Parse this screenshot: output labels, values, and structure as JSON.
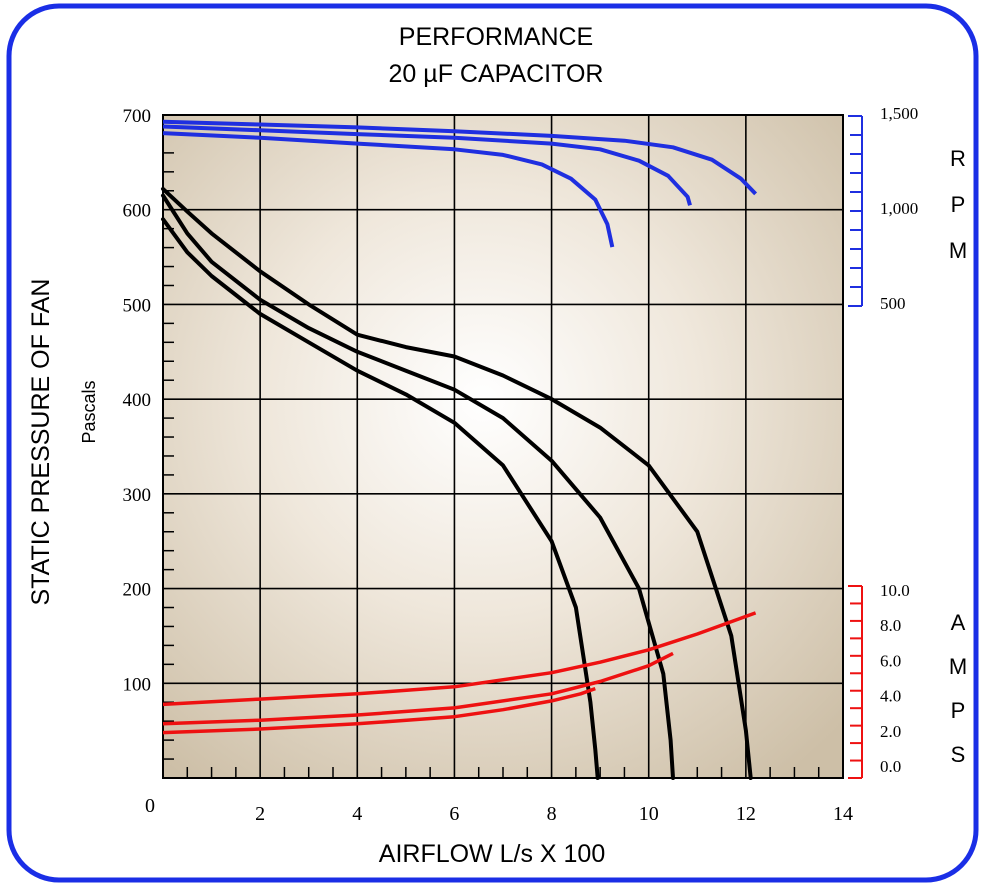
{
  "chart_data": {
    "type": "line",
    "title": "PERFORMANCE",
    "subtitle": "20 µF CAPACITOR",
    "xlabel": "AIRFLOW L/s X 100",
    "ylabel": "STATIC PRESSURE OF FAN",
    "ylabel_units": "Pascals",
    "xlim": [
      0,
      14
    ],
    "ylim": [
      0,
      700
    ],
    "x_ticks": [
      "0",
      "2",
      "4",
      "6",
      "8",
      "10",
      "12",
      "14"
    ],
    "y_ticks": [
      "100",
      "200",
      "300",
      "400",
      "500",
      "600",
      "700"
    ],
    "grid": true,
    "rpm_axis": {
      "label_letters": [
        "R",
        "P",
        "M"
      ],
      "ticks": [
        "1,500",
        "1,000",
        "500"
      ],
      "color": "#1f2fe0"
    },
    "amps_axis": {
      "label_letters": [
        "A",
        "M",
        "P",
        "S"
      ],
      "ticks": [
        "10.0",
        "8.0",
        "6.0",
        "4.0",
        "2.0",
        "0.0"
      ],
      "color": "#ee1111"
    },
    "pressure_curves": {
      "color": "#000000",
      "series": [
        {
          "x": [
            0.0,
            0.5,
            1.0,
            2.0,
            3.0,
            4.0,
            5.0,
            6.0,
            7.0,
            8.0,
            8.5,
            8.8,
            8.9,
            8.95
          ],
          "y": [
            590,
            555,
            530,
            490,
            460,
            430,
            405,
            375,
            330,
            250,
            180,
            80,
            30,
            0
          ]
        },
        {
          "x": [
            0.0,
            0.5,
            1.0,
            2.0,
            3.0,
            4.0,
            5.0,
            6.0,
            7.0,
            8.0,
            9.0,
            9.8,
            10.3,
            10.45,
            10.5
          ],
          "y": [
            615,
            575,
            545,
            505,
            475,
            450,
            430,
            410,
            380,
            335,
            275,
            200,
            110,
            40,
            0
          ]
        },
        {
          "x": [
            0.0,
            0.5,
            1.0,
            2.0,
            3.0,
            4.0,
            5.0,
            6.0,
            7.0,
            8.0,
            9.0,
            10.0,
            11.0,
            11.7,
            12.0,
            12.1
          ],
          "y": [
            622,
            598,
            575,
            535,
            500,
            468,
            455,
            445,
            425,
            400,
            370,
            330,
            260,
            150,
            50,
            0
          ]
        }
      ]
    },
    "rpm_curves": {
      "series": [
        {
          "x": [
            0.0,
            2.0,
            4.0,
            6.0,
            7.0,
            7.8,
            8.4,
            8.9,
            9.15,
            9.25
          ],
          "rpm": [
            1410,
            1385,
            1355,
            1325,
            1295,
            1245,
            1170,
            1060,
            930,
            810
          ]
        },
        {
          "x": [
            0.0,
            2.0,
            4.0,
            6.0,
            8.0,
            9.0,
            9.8,
            10.4,
            10.8,
            10.85
          ],
          "rpm": [
            1445,
            1425,
            1405,
            1385,
            1355,
            1325,
            1265,
            1185,
            1075,
            1030
          ]
        },
        {
          "x": [
            0.0,
            2.0,
            4.0,
            6.0,
            8.0,
            9.5,
            10.5,
            11.3,
            11.9,
            12.2
          ],
          "rpm": [
            1470,
            1455,
            1440,
            1420,
            1395,
            1370,
            1335,
            1270,
            1170,
            1090
          ]
        }
      ]
    },
    "amps_curves": {
      "series": [
        {
          "x": [
            0.0,
            2.0,
            4.0,
            6.0,
            7.0,
            8.0,
            8.6,
            8.9
          ],
          "amps": [
            1.9,
            2.1,
            2.4,
            2.8,
            3.2,
            3.7,
            4.1,
            4.4
          ]
        },
        {
          "x": [
            0.0,
            2.0,
            4.0,
            6.0,
            8.0,
            9.0,
            10.0,
            10.5
          ],
          "amps": [
            2.4,
            2.6,
            2.9,
            3.3,
            4.1,
            4.8,
            5.7,
            6.4
          ]
        },
        {
          "x": [
            0.0,
            2.0,
            4.0,
            6.0,
            8.0,
            9.0,
            10.0,
            11.0,
            12.0,
            12.2
          ],
          "amps": [
            3.5,
            3.8,
            4.1,
            4.5,
            5.3,
            5.9,
            6.6,
            7.5,
            8.5,
            8.7
          ]
        }
      ]
    }
  }
}
